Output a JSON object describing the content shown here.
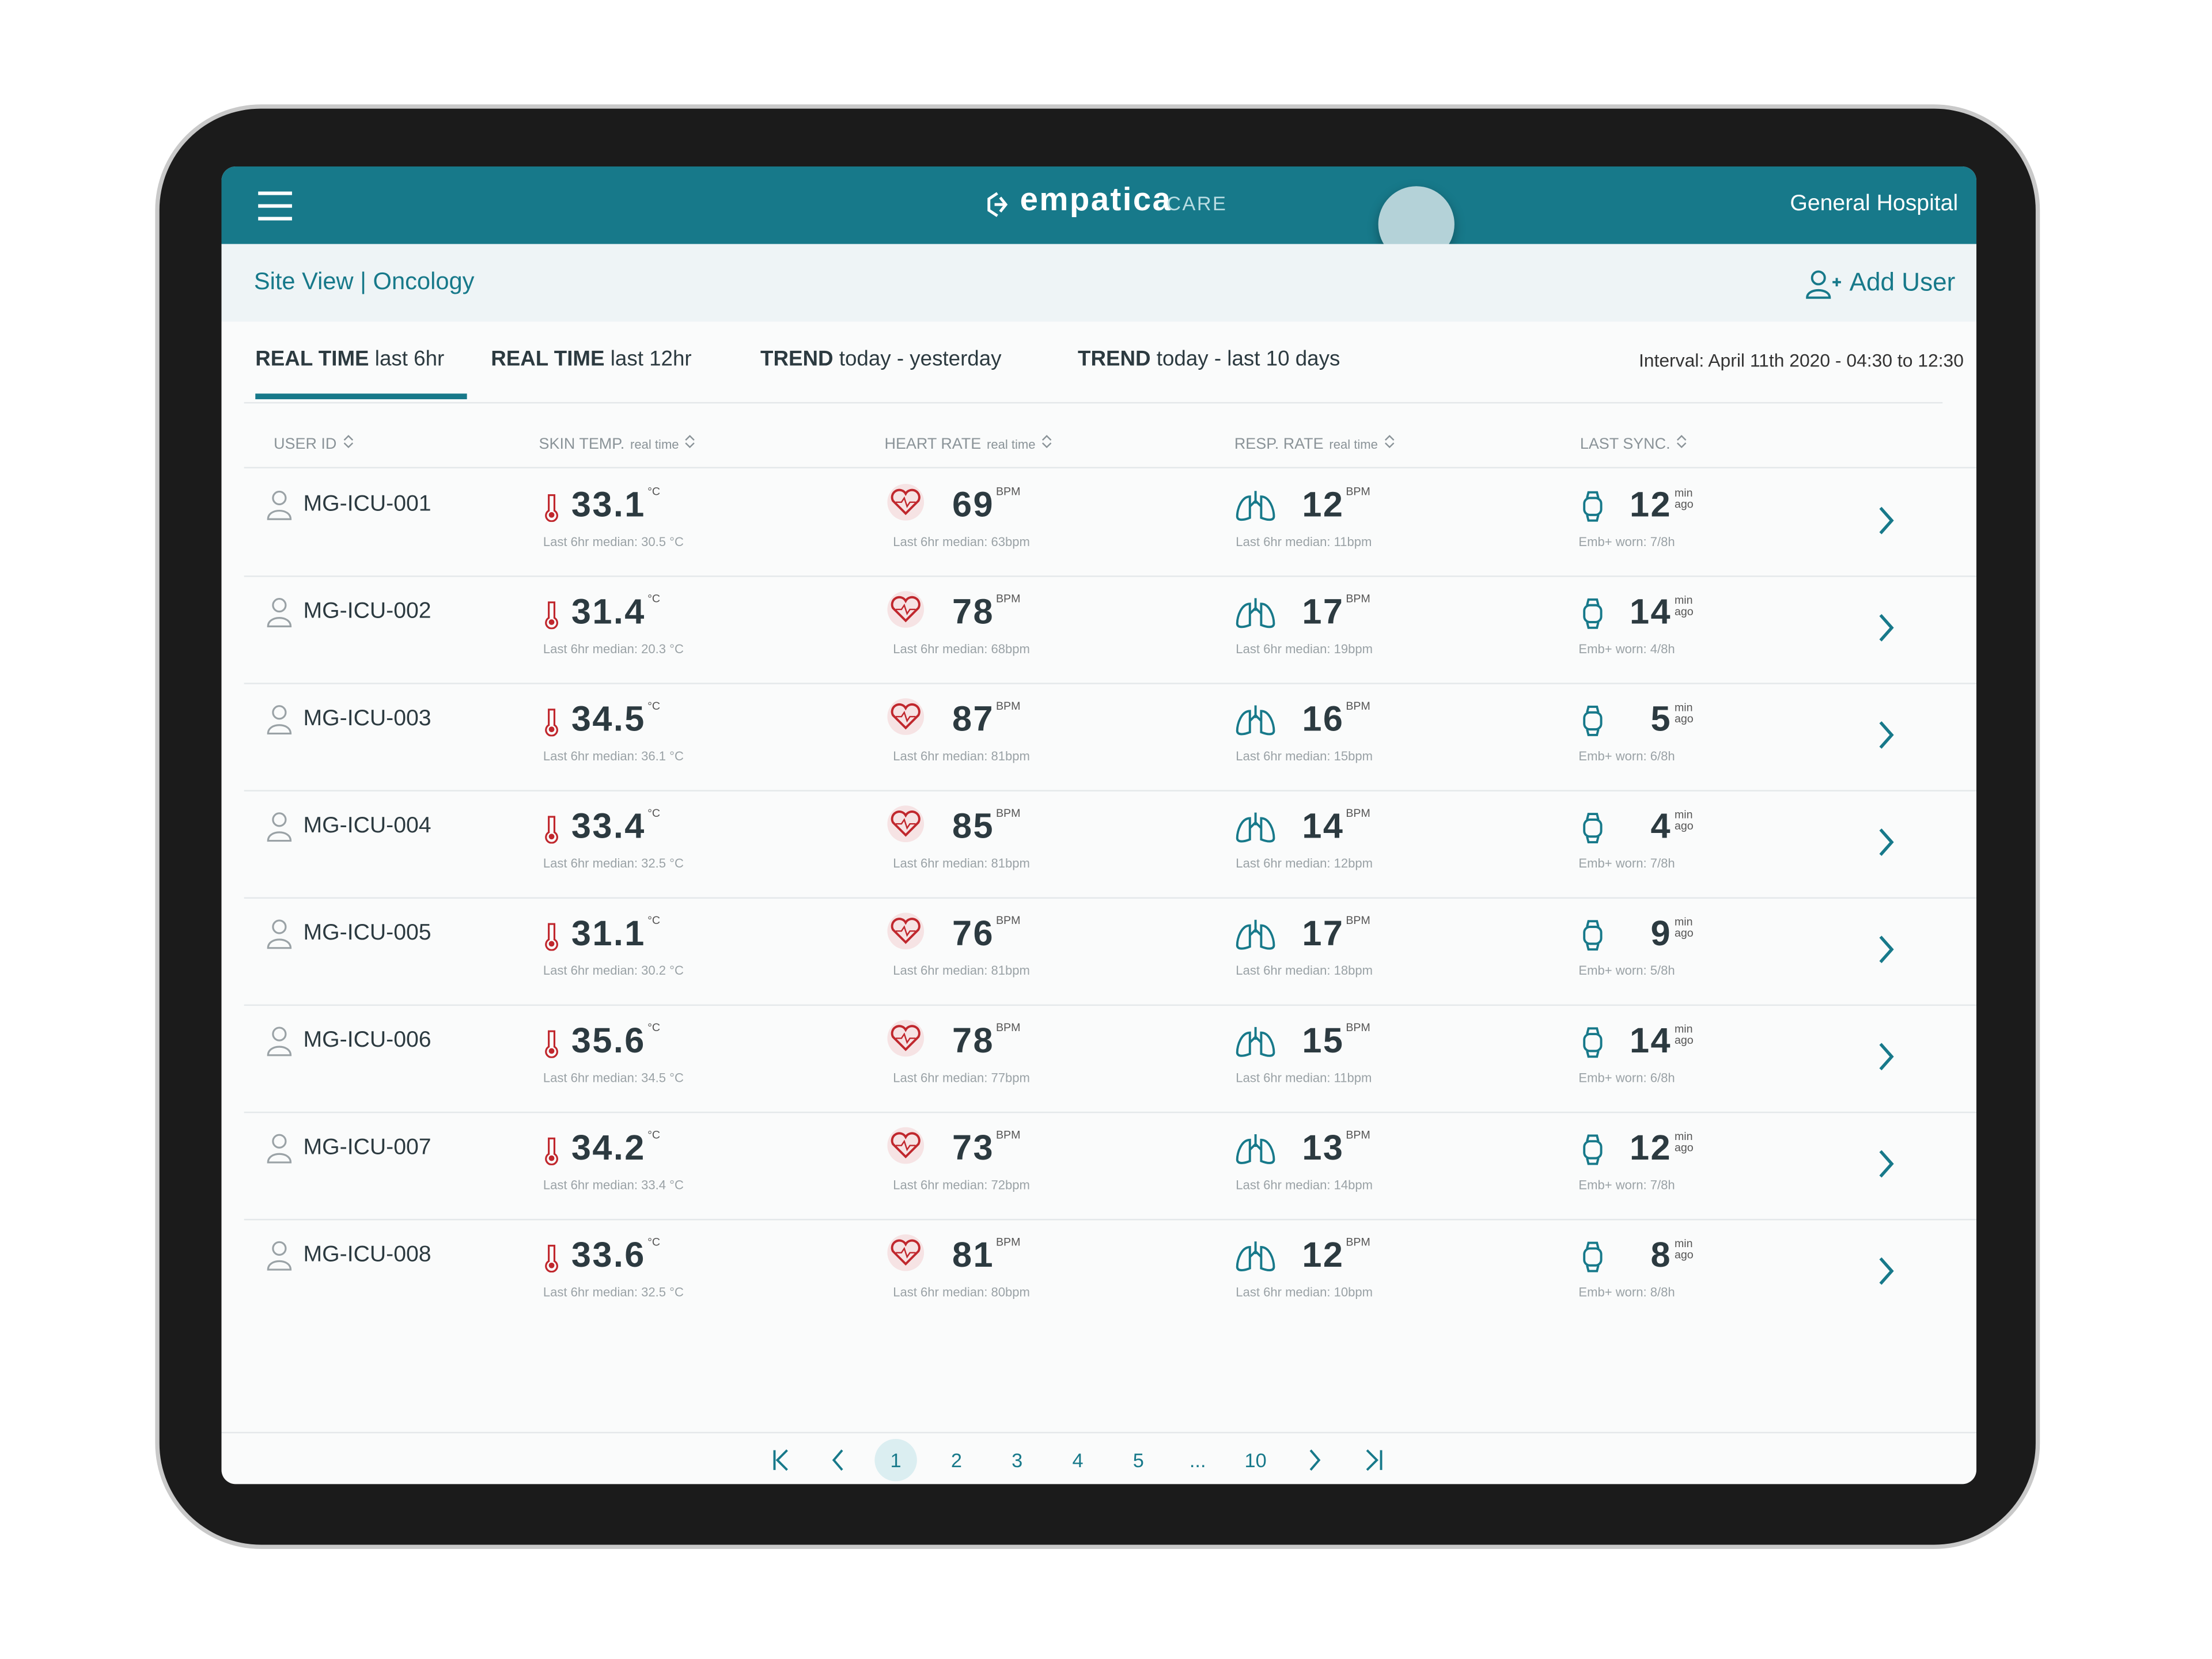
{
  "header": {
    "brand": "empatica",
    "brand_suffix": "CARE",
    "hospital": "General Hospital"
  },
  "subheader": {
    "breadcrumb": "Site View | Oncology",
    "add_user": "Add User"
  },
  "tabs": [
    {
      "bold": "REAL TIME",
      "rest": "last 6hr"
    },
    {
      "bold": "REAL TIME",
      "rest": "last 12hr"
    },
    {
      "bold": "TREND",
      "rest": "today - yesterday"
    },
    {
      "bold": "TREND",
      "rest": "today - last 10 days"
    }
  ],
  "interval": "Interval: April 11th 2020 - 04:30 to 12:30",
  "columns": [
    {
      "name": "USER ID"
    },
    {
      "name": "SKIN TEMP.",
      "sub": "real time"
    },
    {
      "name": "HEART RATE",
      "sub": "real time"
    },
    {
      "name": "RESP. RATE",
      "sub": "real time"
    },
    {
      "name": "LAST SYNC."
    }
  ],
  "units": {
    "temp": "°C",
    "hr": "BPM",
    "rr": "BPM",
    "sync_top": "min",
    "sync_bottom": "ago"
  },
  "table": {
    "rows": [
      {
        "id": "MG-ICU-001",
        "temp": 33.1,
        "temp_median": "Last 6hr median: 30.5 °C",
        "hr": 69,
        "hr_median": "Last 6hr median: 63bpm",
        "rr": 12,
        "rr_median": "Last 6hr median: 11bpm",
        "sync": 12,
        "worn": "Emb+ worn: 7/8h"
      },
      {
        "id": "MG-ICU-002",
        "temp": 31.4,
        "temp_median": "Last 6hr median: 20.3 °C",
        "hr": 78,
        "hr_median": "Last 6hr median: 68bpm",
        "rr": 17,
        "rr_median": "Last 6hr median: 19bpm",
        "sync": 14,
        "worn": "Emb+ worn: 4/8h"
      },
      {
        "id": "MG-ICU-003",
        "temp": 34.5,
        "temp_median": "Last 6hr median: 36.1 °C",
        "hr": 87,
        "hr_median": "Last 6hr median: 81bpm",
        "rr": 16,
        "rr_median": "Last 6hr median: 15bpm",
        "sync": 5,
        "worn": "Emb+ worn: 6/8h"
      },
      {
        "id": "MG-ICU-004",
        "temp": 33.4,
        "temp_median": "Last 6hr median: 32.5 °C",
        "hr": 85,
        "hr_median": "Last 6hr median: 81bpm",
        "rr": 14,
        "rr_median": "Last 6hr median: 12bpm",
        "sync": 4,
        "worn": "Emb+ worn: 7/8h"
      },
      {
        "id": "MG-ICU-005",
        "temp": 31.1,
        "temp_median": "Last 6hr median: 30.2 °C",
        "hr": 76,
        "hr_median": "Last 6hr median: 81bpm",
        "rr": 17,
        "rr_median": "Last 6hr median: 18bpm",
        "sync": 9,
        "worn": "Emb+ worn: 5/8h"
      },
      {
        "id": "MG-ICU-006",
        "temp": 35.6,
        "temp_median": "Last 6hr median: 34.5 °C",
        "hr": 78,
        "hr_median": "Last 6hr median: 77bpm",
        "rr": 15,
        "rr_median": "Last 6hr median: 11bpm",
        "sync": 14,
        "worn": "Emb+ worn: 6/8h"
      },
      {
        "id": "MG-ICU-007",
        "temp": 34.2,
        "temp_median": "Last 6hr median: 33.4 °C",
        "hr": 73,
        "hr_median": "Last 6hr median: 72bpm",
        "rr": 13,
        "rr_median": "Last 6hr median: 14bpm",
        "sync": 12,
        "worn": "Emb+ worn: 7/8h"
      },
      {
        "id": "MG-ICU-008",
        "temp": 33.6,
        "temp_median": "Last 6hr median: 32.5 °C",
        "hr": 81,
        "hr_median": "Last 6hr median: 80bpm",
        "rr": 12,
        "rr_median": "Last 6hr median: 10bpm",
        "sync": 8,
        "worn": "Emb+ worn: 8/8h"
      }
    ]
  },
  "pagination": {
    "pages": [
      "1",
      "2",
      "3",
      "4",
      "5",
      "...",
      "10"
    ],
    "current": 0
  }
}
